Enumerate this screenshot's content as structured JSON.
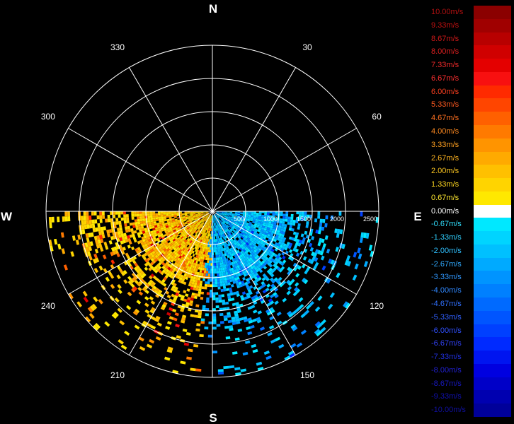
{
  "chart_data": {
    "type": "polar_ppi",
    "compass": {
      "north": "N",
      "south": "S",
      "east": "E",
      "west": "W"
    },
    "azimuth_labels": [
      {
        "deg": 30,
        "label": "30"
      },
      {
        "deg": 60,
        "label": "60"
      },
      {
        "deg": 120,
        "label": "120"
      },
      {
        "deg": 150,
        "label": "150"
      },
      {
        "deg": 210,
        "label": "210"
      },
      {
        "deg": 240,
        "label": "240"
      },
      {
        "deg": 300,
        "label": "300"
      },
      {
        "deg": 330,
        "label": "330"
      }
    ],
    "range_rings": [
      500,
      1000,
      1500,
      2000,
      2500
    ],
    "range_labels": [
      "500",
      "1000",
      "1500",
      "2000",
      "2500"
    ],
    "max_range": 2500,
    "sector": {
      "start_deg": 90,
      "end_deg": 270
    },
    "approaching_max_deg": 183,
    "legend": [
      {
        "label": "10.00m/s",
        "value": 10.0,
        "color": "#8b0000",
        "text_color": "#b01010"
      },
      {
        "label": "9.33m/s",
        "value": 9.33,
        "color": "#a00000",
        "text_color": "#c01010"
      },
      {
        "label": "8.67m/s",
        "value": 8.67,
        "color": "#b80000",
        "text_color": "#d01818"
      },
      {
        "label": "8.00m/s",
        "value": 8.0,
        "color": "#d00000",
        "text_color": "#e02020"
      },
      {
        "label": "7.33m/s",
        "value": 7.33,
        "color": "#e40000",
        "text_color": "#f02a2a"
      },
      {
        "label": "6.67m/s",
        "value": 6.67,
        "color": "#f81010",
        "text_color": "#ff3030"
      },
      {
        "label": "6.00m/s",
        "value": 6.0,
        "color": "#ff2a00",
        "text_color": "#ff4020"
      },
      {
        "label": "5.33m/s",
        "value": 5.33,
        "color": "#ff4500",
        "text_color": "#ff5a20"
      },
      {
        "label": "4.67m/s",
        "value": 4.67,
        "color": "#ff6000",
        "text_color": "#ff7020"
      },
      {
        "label": "4.00m/s",
        "value": 4.0,
        "color": "#ff7a00",
        "text_color": "#ff8a20"
      },
      {
        "label": "3.33m/s",
        "value": 3.33,
        "color": "#ff9400",
        "text_color": "#ffa020"
      },
      {
        "label": "2.67m/s",
        "value": 2.67,
        "color": "#ffaa00",
        "text_color": "#ffb420"
      },
      {
        "label": "2.00m/s",
        "value": 2.0,
        "color": "#ffc000",
        "text_color": "#ffc820"
      },
      {
        "label": "1.33m/s",
        "value": 1.33,
        "color": "#ffd400",
        "text_color": "#ffd820"
      },
      {
        "label": "0.67m/s",
        "value": 0.67,
        "color": "#ffe800",
        "text_color": "#ffe830"
      },
      {
        "label": "0.00m/s",
        "value": 0.0,
        "color": "#ffffff",
        "text_color": "#ffffff"
      },
      {
        "label": "-0.67m/s",
        "value": -0.67,
        "color": "#00e8ff",
        "text_color": "#30e0ff"
      },
      {
        "label": "-1.33m/s",
        "value": -1.33,
        "color": "#00d4ff",
        "text_color": "#30d0ff"
      },
      {
        "label": "-2.00m/s",
        "value": -2.0,
        "color": "#00c0ff",
        "text_color": "#30c0ff"
      },
      {
        "label": "-2.67m/s",
        "value": -2.67,
        "color": "#00aaff",
        "text_color": "#30aaff"
      },
      {
        "label": "-3.33m/s",
        "value": -3.33,
        "color": "#0094ff",
        "text_color": "#3098ff"
      },
      {
        "label": "-4.00m/s",
        "value": -4.0,
        "color": "#0080ff",
        "text_color": "#3088ff"
      },
      {
        "label": "-4.67m/s",
        "value": -4.67,
        "color": "#006aff",
        "text_color": "#3070ff"
      },
      {
        "label": "-5.33m/s",
        "value": -5.33,
        "color": "#0055ff",
        "text_color": "#3060ff"
      },
      {
        "label": "-6.00m/s",
        "value": -6.0,
        "color": "#0040ff",
        "text_color": "#3050ff"
      },
      {
        "label": "-6.67m/s",
        "value": -6.67,
        "color": "#002aff",
        "text_color": "#3040f0"
      },
      {
        "label": "-7.33m/s",
        "value": -7.33,
        "color": "#0015f0",
        "text_color": "#2030e0"
      },
      {
        "label": "-8.00m/s",
        "value": -8.0,
        "color": "#0000e0",
        "text_color": "#2020d0"
      },
      {
        "label": "-8.67m/s",
        "value": -8.67,
        "color": "#0000c8",
        "text_color": "#1818c0"
      },
      {
        "label": "-9.33m/s",
        "value": -9.33,
        "color": "#0000b0",
        "text_color": "#1010b0"
      },
      {
        "label": "-10.00m/s",
        "value": -10.0,
        "color": "#00009a",
        "text_color": "#1010a0"
      }
    ]
  }
}
